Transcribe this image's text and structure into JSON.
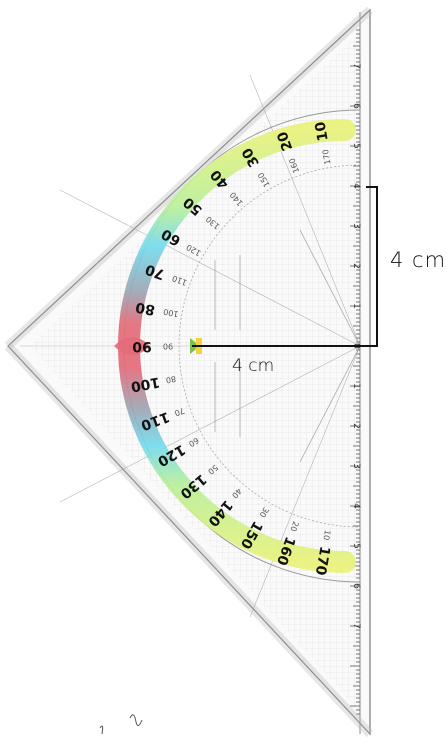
{
  "measurements": {
    "vertical_label": "4 cm",
    "horizontal_label": "4 cm"
  },
  "protractor": {
    "outer_scale": [
      "10",
      "20",
      "30",
      "40",
      "50",
      "60",
      "70",
      "80",
      "90",
      "100",
      "110",
      "120",
      "130",
      "140",
      "150",
      "160",
      "170"
    ],
    "inner_scale": [
      "170",
      "160",
      "150",
      "140",
      "130",
      "120",
      "110",
      "100",
      "90",
      "80",
      "70",
      "60",
      "50",
      "40",
      "30",
      "20",
      "10"
    ]
  },
  "ruler": {
    "upper_ticks": [
      "1",
      "2",
      "3",
      "4",
      "5",
      "6",
      "7"
    ],
    "lower_ticks": [
      "1",
      "2",
      "3",
      "4",
      "5",
      "6",
      "7"
    ],
    "center_label": "0"
  },
  "colors": {
    "arc_yellow": "#e9f27a",
    "arc_cyan": "#74dbee",
    "arc_pink": "#e46b7a",
    "arc_grey": "#9aa8b6",
    "marker_green": "#7cc24a",
    "marker_yellow": "#f2d43a"
  }
}
